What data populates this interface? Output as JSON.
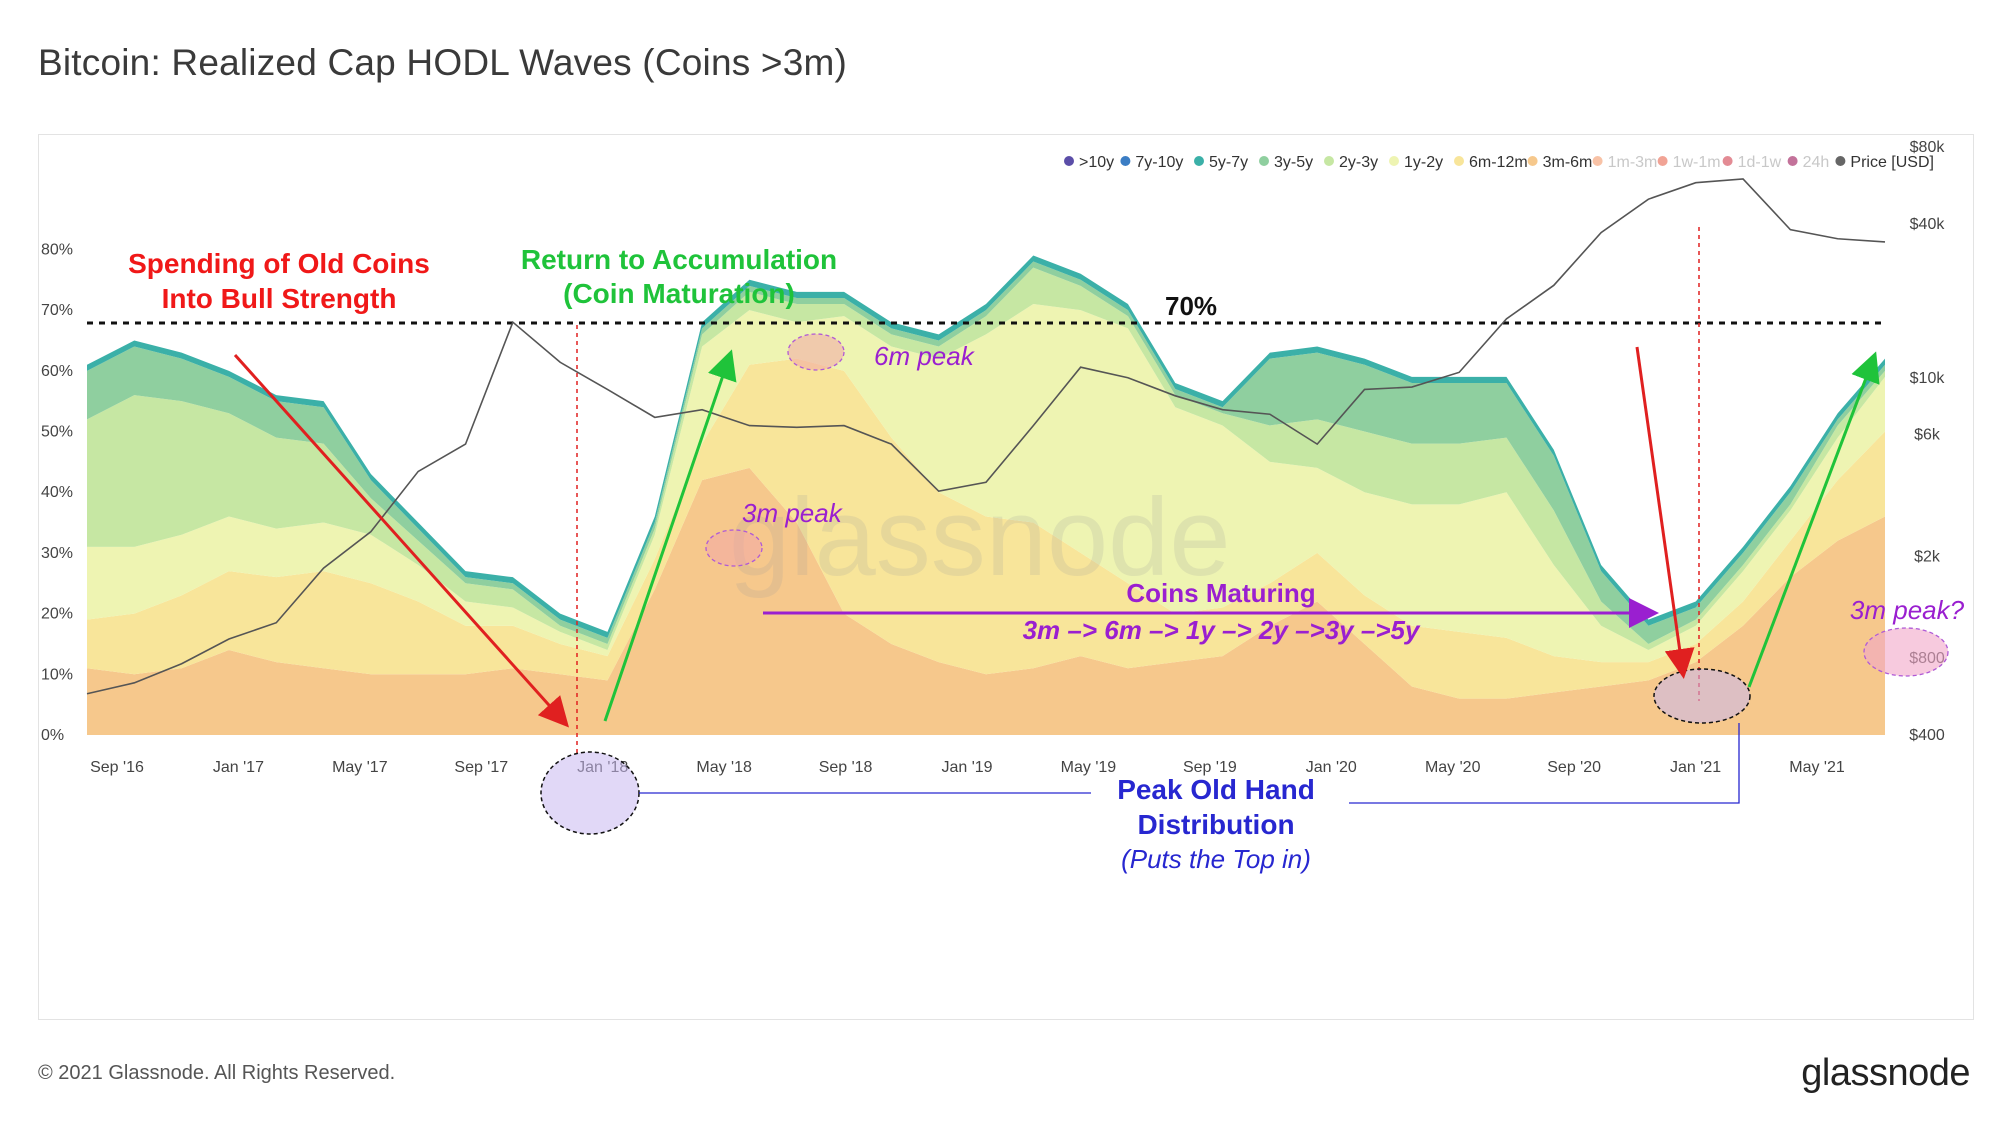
{
  "title": "Bitcoin: Realized Cap HODL Waves (Coins >3m)",
  "footer": {
    "copyright": "© 2021 Glassnode. All Rights Reserved.",
    "logo": "glassnode"
  },
  "watermark": "glassnode",
  "chart_data": {
    "type": "area",
    "stacked": true,
    "title": "Bitcoin: Realized Cap HODL Waves (Coins >3m)",
    "x_ticks": [
      "Sep '16",
      "Jan '17",
      "May '17",
      "Sep '17",
      "Jan '18",
      "May '18",
      "Sep '18",
      "Jan '19",
      "May '19",
      "Sep '19",
      "Jan '20",
      "May '20",
      "Sep '20",
      "Jan '21",
      "May '21"
    ],
    "y_left": {
      "ticks": [
        "0%",
        "10%",
        "20%",
        "30%",
        "40%",
        "50%",
        "60%",
        "70%",
        "80%"
      ],
      "range": [
        0,
        86
      ]
    },
    "y_right": {
      "ticks": [
        "$400",
        "$800",
        "$2k",
        "$6k",
        "$10k",
        "$40k",
        "$80k"
      ],
      "scale": "log",
      "range": [
        400,
        80000
      ]
    },
    "legend_position": "top-right",
    "legend": [
      {
        "name": ">10y",
        "color": "#5b4ea8",
        "active": true
      },
      {
        "name": "7y-10y",
        "color": "#3b7dc4",
        "active": true
      },
      {
        "name": "5y-7y",
        "color": "#3bb0a8",
        "active": true
      },
      {
        "name": "3y-5y",
        "color": "#8fcf9f",
        "active": true
      },
      {
        "name": "2y-3y",
        "color": "#c6e7a3",
        "active": true
      },
      {
        "name": "1y-2y",
        "color": "#eef4b2",
        "active": true
      },
      {
        "name": "6m-12m",
        "color": "#f8e59a",
        "active": true
      },
      {
        "name": "3m-6m",
        "color": "#f6c88c",
        "active": true
      },
      {
        "name": "1m-3m",
        "color": "#f39a6a",
        "active": false
      },
      {
        "name": "1w-1m",
        "color": "#e8654f",
        "active": false
      },
      {
        "name": "1d-1w",
        "color": "#d03d4d",
        "active": false
      },
      {
        "name": "24h",
        "color": "#9b1456",
        "active": false
      },
      {
        "name": "Price [USD]",
        "color": "#666666",
        "active": true
      }
    ],
    "x": [
      "2016-08",
      "2016-10",
      "2016-12",
      "2017-01",
      "2017-03",
      "2017-05",
      "2017-07",
      "2017-09",
      "2017-10",
      "2017-12",
      "2018-01",
      "2018-02",
      "2018-04",
      "2018-05",
      "2018-06",
      "2018-07",
      "2018-09",
      "2018-11",
      "2019-01",
      "2019-03",
      "2019-05",
      "2019-06",
      "2019-07",
      "2019-09",
      "2019-11",
      "2020-01",
      "2020-03",
      "2020-05",
      "2020-07",
      "2020-09",
      "2020-11",
      "2020-12",
      "2021-01",
      "2021-02",
      "2021-03",
      "2021-04",
      "2021-05",
      "2021-06",
      "2021-07"
    ],
    "series": [
      {
        "name": "3m-6m",
        "values": [
          11,
          10,
          11,
          14,
          12,
          11,
          10,
          10,
          10,
          11,
          10,
          9,
          24,
          42,
          44,
          35,
          20,
          15,
          12,
          10,
          11,
          13,
          11,
          12,
          13,
          18,
          22,
          15,
          8,
          6,
          6,
          7,
          8,
          9,
          12,
          18,
          26,
          32,
          36
        ]
      },
      {
        "name": "6m-12m",
        "values": [
          8,
          10,
          12,
          13,
          14,
          16,
          15,
          12,
          8,
          7,
          5,
          4,
          5,
          6,
          17,
          27,
          40,
          34,
          28,
          26,
          24,
          17,
          14,
          8,
          8,
          7,
          8,
          8,
          10,
          11,
          10,
          6,
          4,
          3,
          3,
          4,
          6,
          10,
          14
        ]
      },
      {
        "name": "1y-2y",
        "values": [
          12,
          11,
          10,
          9,
          8,
          8,
          8,
          6,
          4,
          3,
          2,
          1,
          4,
          16,
          9,
          6,
          9,
          15,
          22,
          30,
          36,
          40,
          42,
          34,
          30,
          20,
          14,
          17,
          20,
          21,
          24,
          15,
          6,
          2,
          3,
          5,
          5,
          7,
          9
        ]
      },
      {
        "name": "2y-3y",
        "values": [
          21,
          25,
          22,
          17,
          15,
          13,
          6,
          4,
          3,
          3,
          1,
          1,
          1,
          2,
          3,
          3,
          2,
          2,
          2,
          3,
          6,
          4,
          2,
          2,
          2,
          6,
          8,
          10,
          10,
          10,
          9,
          9,
          4,
          1,
          1,
          1,
          1,
          2,
          1
        ]
      },
      {
        "name": "3y-5y",
        "values": [
          8,
          8,
          7,
          6,
          6,
          6,
          3,
          2,
          1,
          1,
          1,
          1,
          1,
          1,
          1,
          1,
          1,
          1,
          1,
          1,
          1,
          1,
          1,
          1,
          1,
          11,
          11,
          11,
          10,
          10,
          9,
          9,
          5,
          3,
          2,
          2,
          2,
          1,
          1
        ]
      },
      {
        "name": "5y-7y",
        "values": [
          1,
          1,
          1,
          1,
          1,
          1,
          1,
          1,
          1,
          1,
          1,
          1,
          1,
          1,
          1,
          1,
          1,
          1,
          1,
          1,
          1,
          1,
          1,
          1,
          1,
          1,
          1,
          1,
          1,
          1,
          1,
          1,
          1,
          1,
          1,
          1,
          1,
          1,
          1
        ]
      },
      {
        "name": "Price [USD]",
        "values": [
          580,
          640,
          760,
          950,
          1100,
          1800,
          2500,
          4300,
          5500,
          16500,
          11500,
          9000,
          7000,
          7500,
          6500,
          6400,
          6500,
          5500,
          3600,
          3900,
          6500,
          11000,
          10000,
          8500,
          7500,
          7200,
          5500,
          9000,
          9200,
          10500,
          17000,
          23000,
          37000,
          50000,
          58000,
          60000,
          38000,
          35000,
          34000
        ]
      }
    ],
    "reference_line": {
      "value": 70,
      "label": "70%"
    }
  },
  "annotations": {
    "spending": [
      "Spending of Old Coins",
      "Into Bull Strength"
    ],
    "accumulation": [
      "Return to Accumulation",
      "(Coin Maturation)"
    ],
    "peak6m": "6m peak",
    "peak3m": "3m peak",
    "maturing_title": "Coins Maturing",
    "maturing_sub": "3m –> 6m –> 1y –> 2y –>3y –>5y",
    "peak3m_q": "3m peak?",
    "peak_old_hand": [
      "Peak Old Hand",
      "Distribution"
    ],
    "puts_top": "(Puts the Top in)"
  }
}
